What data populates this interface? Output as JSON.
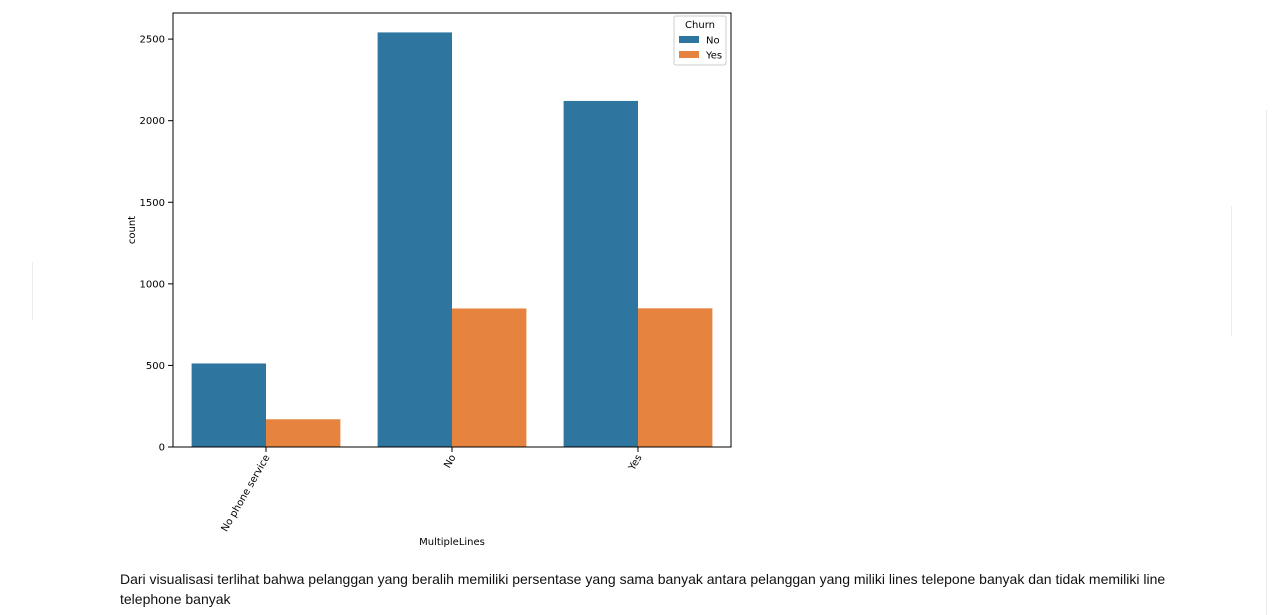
{
  "chart_data": {
    "type": "bar",
    "title": "",
    "xlabel": "MultipleLines",
    "ylabel": "count",
    "categories": [
      "No phone service",
      "No",
      "Yes"
    ],
    "series": [
      {
        "name": "No",
        "values": [
          512,
          2541,
          2121
        ],
        "color": "#2e75a0"
      },
      {
        "name": "Yes",
        "values": [
          170,
          849,
          850
        ],
        "color": "#e6843f"
      }
    ],
    "ylim": [
      0,
      2660
    ],
    "yticks": [
      0,
      500,
      1000,
      1500,
      2000,
      2500
    ],
    "legend": {
      "title": "Churn",
      "position": "top-right"
    },
    "grid": false
  },
  "caption": "Dari visualisasi terlihat bahwa pelanggan yang beralih memiliki persentase yang sama banyak antara pelanggan yang miliki lines telepone banyak dan tidak memiliki line telephone banyak"
}
